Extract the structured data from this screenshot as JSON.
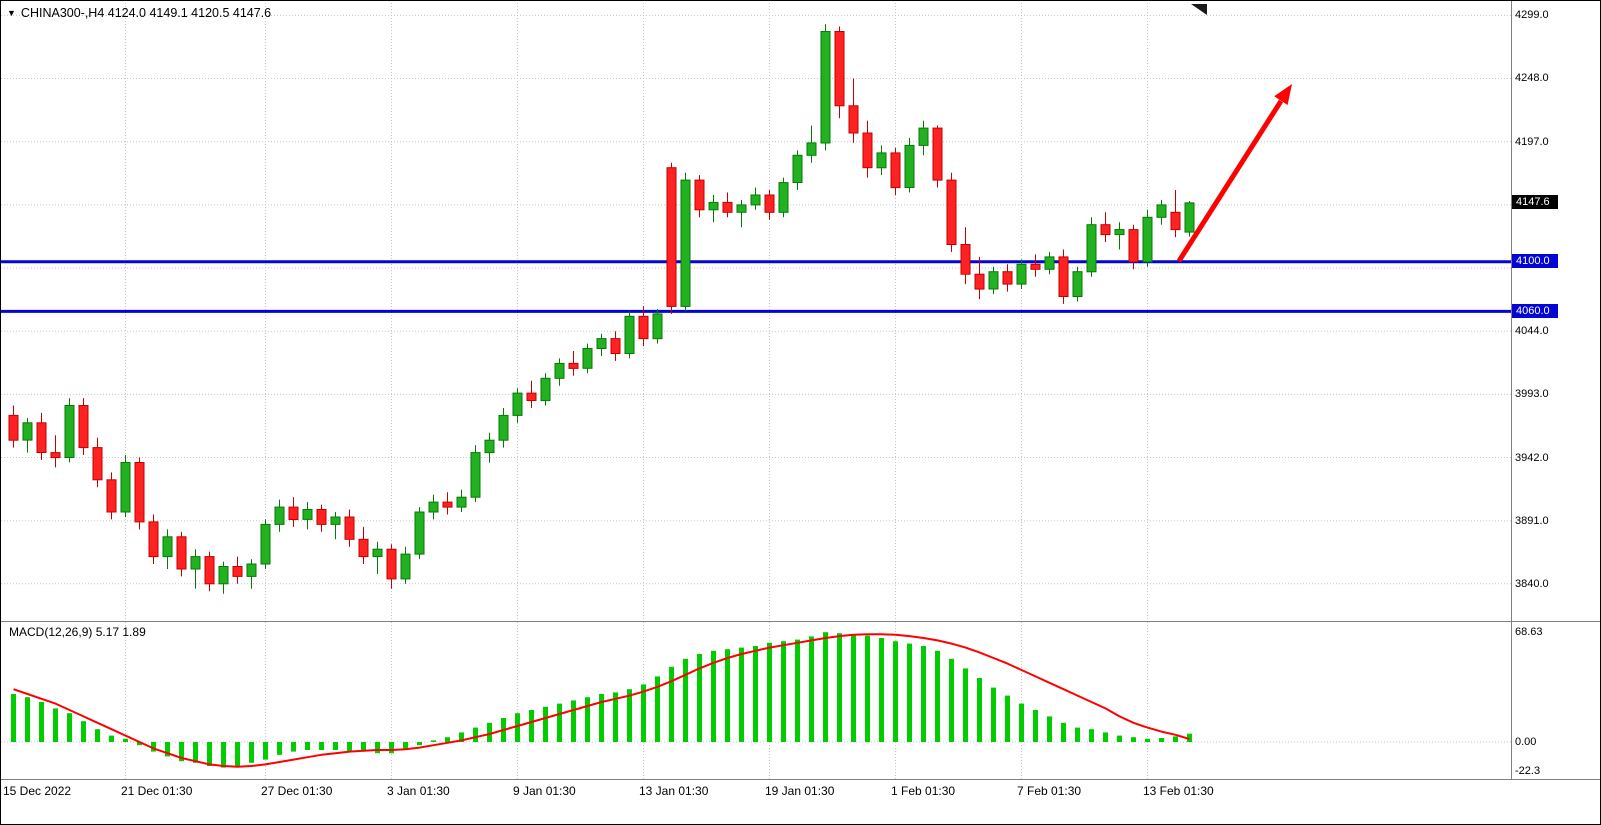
{
  "window": {
    "title": "CHINA300-,H4 4124.0 4149.1 4120.5 4147.6",
    "dropdown_glyph": "▼"
  },
  "colors": {
    "background": "#ffffff",
    "grid": "#c6c6c6",
    "up_candle": "#21b121",
    "up_candle_border": "#077907",
    "down_candle": "#ff2222",
    "down_candle_border": "#c40000",
    "level_line": "#0404d4",
    "current_price_bg": "#000000",
    "macd_histogram": "#00cc00",
    "macd_signal": "#ff0000",
    "trend_arrow": "#fe0000",
    "separator": "#808080",
    "text": "#000000"
  },
  "chart_data": [
    {
      "type": "candlestick",
      "symbol": "CHINA300-",
      "timeframe": "H4",
      "current_bar": {
        "open": 4124.0,
        "high": 4149.1,
        "low": 4120.5,
        "close": 4147.6
      },
      "ylim": [
        3810,
        4309
      ],
      "grid_prices": [
        3840,
        3891,
        3942,
        3993,
        4044,
        4095,
        4146,
        4197,
        4248,
        4299
      ],
      "y_tick_labels": [
        "4299.0",
        "4248.0",
        "4197.0",
        "4044.0",
        "3993.0",
        "3942.0",
        "3891.0",
        "3840.0"
      ],
      "current_price_label": "4147.6",
      "support_levels": [
        {
          "price": 4100.0,
          "label": "4100.0"
        },
        {
          "price": 4060.0,
          "label": "4060.0"
        }
      ],
      "x_tick_labels": [
        "15 Dec 2022",
        "21 Dec 01:30",
        "27 Dec 01:30",
        "3 Jan 01:30",
        "9 Jan 01:30",
        "13 Jan 01:30",
        "19 Jan 01:30",
        "1 Feb 01:30",
        "7 Feb 01:30",
        "13 Feb 01:30"
      ],
      "x_tick_indices": [
        0,
        8,
        18,
        27,
        36,
        45,
        54,
        63,
        72,
        81
      ],
      "annotations": [
        {
          "type": "trend-arrow",
          "direction": "up"
        }
      ],
      "ohlc": [
        [
          3976,
          3984,
          3950,
          3956
        ],
        [
          3956,
          3974,
          3946,
          3970
        ],
        [
          3970,
          3978,
          3940,
          3946
        ],
        [
          3946,
          3960,
          3934,
          3942
        ],
        [
          3942,
          3990,
          3938,
          3984
        ],
        [
          3984,
          3990,
          3944,
          3950
        ],
        [
          3950,
          3958,
          3918,
          3924
        ],
        [
          3924,
          3930,
          3892,
          3898
        ],
        [
          3898,
          3944,
          3894,
          3938
        ],
        [
          3938,
          3942,
          3884,
          3890
        ],
        [
          3890,
          3896,
          3856,
          3862
        ],
        [
          3862,
          3884,
          3852,
          3878
        ],
        [
          3878,
          3882,
          3846,
          3852
        ],
        [
          3852,
          3868,
          3836,
          3862
        ],
        [
          3862,
          3866,
          3834,
          3840
        ],
        [
          3840,
          3858,
          3832,
          3854
        ],
        [
          3854,
          3862,
          3840,
          3846
        ],
        [
          3846,
          3860,
          3836,
          3856
        ],
        [
          3856,
          3892,
          3852,
          3888
        ],
        [
          3888,
          3908,
          3882,
          3902
        ],
        [
          3902,
          3910,
          3886,
          3892
        ],
        [
          3892,
          3906,
          3884,
          3900
        ],
        [
          3900,
          3904,
          3882,
          3888
        ],
        [
          3888,
          3898,
          3876,
          3894
        ],
        [
          3894,
          3900,
          3870,
          3876
        ],
        [
          3876,
          3886,
          3856,
          3862
        ],
        [
          3862,
          3874,
          3848,
          3868
        ],
        [
          3868,
          3872,
          3836,
          3844
        ],
        [
          3844,
          3870,
          3840,
          3864
        ],
        [
          3864,
          3902,
          3860,
          3898
        ],
        [
          3898,
          3912,
          3892,
          3906
        ],
        [
          3906,
          3914,
          3896,
          3902
        ],
        [
          3902,
          3916,
          3898,
          3910
        ],
        [
          3910,
          3952,
          3906,
          3946
        ],
        [
          3946,
          3962,
          3938,
          3956
        ],
        [
          3956,
          3982,
          3950,
          3976
        ],
        [
          3976,
          3998,
          3970,
          3994
        ],
        [
          3994,
          4004,
          3982,
          3988
        ],
        [
          3988,
          4010,
          3984,
          4006
        ],
        [
          4006,
          4022,
          4000,
          4018
        ],
        [
          4018,
          4028,
          4008,
          4014
        ],
        [
          4014,
          4034,
          4010,
          4030
        ],
        [
          4030,
          4042,
          4024,
          4038
        ],
        [
          4038,
          4044,
          4020,
          4026
        ],
        [
          4026,
          4060,
          4022,
          4056
        ],
        [
          4056,
          4064,
          4032,
          4038
        ],
        [
          4038,
          4062,
          4034,
          4058
        ],
        [
          4176,
          4180,
          4058,
          4064
        ],
        [
          4064,
          4172,
          4060,
          4166
        ],
        [
          4166,
          4170,
          4136,
          4142
        ],
        [
          4142,
          4154,
          4132,
          4148
        ],
        [
          4148,
          4156,
          4136,
          4140
        ],
        [
          4140,
          4150,
          4128,
          4146
        ],
        [
          4146,
          4160,
          4142,
          4154
        ],
        [
          4154,
          4158,
          4134,
          4140
        ],
        [
          4140,
          4168,
          4136,
          4164
        ],
        [
          4164,
          4190,
          4158,
          4186
        ],
        [
          4186,
          4210,
          4180,
          4196
        ],
        [
          4196,
          4292,
          4190,
          4286
        ],
        [
          4286,
          4290,
          4216,
          4226
        ],
        [
          4226,
          4248,
          4196,
          4204
        ],
        [
          4204,
          4214,
          4168,
          4176
        ],
        [
          4176,
          4194,
          4170,
          4188
        ],
        [
          4188,
          4192,
          4154,
          4160
        ],
        [
          4160,
          4200,
          4156,
          4194
        ],
        [
          4194,
          4214,
          4186,
          4208
        ],
        [
          4208,
          4210,
          4160,
          4166
        ],
        [
          4166,
          4172,
          4108,
          4114
        ],
        [
          4114,
          4128,
          4082,
          4090
        ],
        [
          4090,
          4104,
          4070,
          4078
        ],
        [
          4078,
          4096,
          4074,
          4092
        ],
        [
          4092,
          4098,
          4076,
          4082
        ],
        [
          4082,
          4102,
          4078,
          4098
        ],
        [
          4098,
          4106,
          4088,
          4094
        ],
        [
          4094,
          4108,
          4090,
          4104
        ],
        [
          4104,
          4110,
          4066,
          4072
        ],
        [
          4072,
          4096,
          4068,
          4092
        ],
        [
          4092,
          4136,
          4088,
          4130
        ],
        [
          4130,
          4140,
          4116,
          4122
        ],
        [
          4122,
          4132,
          4110,
          4126
        ],
        [
          4126,
          4130,
          4094,
          4100
        ],
        [
          4100,
          4142,
          4096,
          4136
        ],
        [
          4136,
          4150,
          4130,
          4146
        ],
        [
          4140,
          4158,
          4120,
          4126
        ],
        [
          4124,
          4149.1,
          4120.5,
          4147.6
        ]
      ]
    },
    {
      "type": "bar",
      "name": "MACD(12,26,9)",
      "label": "MACD(12,26,9) 5.17 1.89",
      "current_macd": 5.17,
      "current_signal": 1.89,
      "ylim": [
        -22.3,
        68.63
      ],
      "scale_labels": [
        "68.63",
        "0.00",
        "-22.3"
      ],
      "histogram": [
        30,
        28,
        25,
        21,
        18,
        13,
        8,
        4,
        2,
        -2,
        -6,
        -9,
        -12,
        -13,
        -15,
        -16,
        -15,
        -13,
        -11,
        -8,
        -6,
        -5,
        -5,
        -5,
        -6,
        -6,
        -7,
        -7,
        -5,
        -2,
        1,
        3,
        6,
        9,
        12,
        15,
        18,
        20,
        22,
        24,
        26,
        28,
        30,
        31,
        33,
        36,
        41,
        47,
        52,
        55,
        57,
        58,
        59,
        60,
        62,
        63,
        64,
        66,
        68.63,
        68,
        67.5,
        66.5,
        65,
        63,
        61.5,
        60,
        57,
        52,
        46,
        40,
        34,
        29,
        24,
        20,
        16,
        12,
        9,
        8,
        6,
        4,
        3,
        2,
        2.5,
        3.5,
        5.17
      ],
      "signal": [
        33,
        30,
        27,
        24,
        20,
        16,
        12,
        8,
        4,
        0,
        -4,
        -7,
        -10,
        -12,
        -14,
        -15,
        -15.5,
        -15,
        -14,
        -12.5,
        -11,
        -9.5,
        -8,
        -7,
        -6,
        -5.5,
        -5,
        -5,
        -4.5,
        -3.5,
        -2,
        -0.5,
        1,
        3,
        5,
        7.5,
        10,
        12.5,
        15,
        17.5,
        20,
        22.5,
        25,
        27,
        29,
        31.5,
        34.5,
        38,
        42,
        46,
        49.5,
        52.5,
        55,
        57,
        59,
        60.5,
        62,
        63.5,
        65,
        66.2,
        67,
        67.4,
        67.4,
        67,
        66.2,
        65,
        63.5,
        61.5,
        59,
        56,
        52.5,
        49,
        45,
        41,
        37,
        33,
        29,
        25,
        21,
        16,
        12,
        9,
        6.5,
        4.5,
        1.89
      ]
    }
  ]
}
